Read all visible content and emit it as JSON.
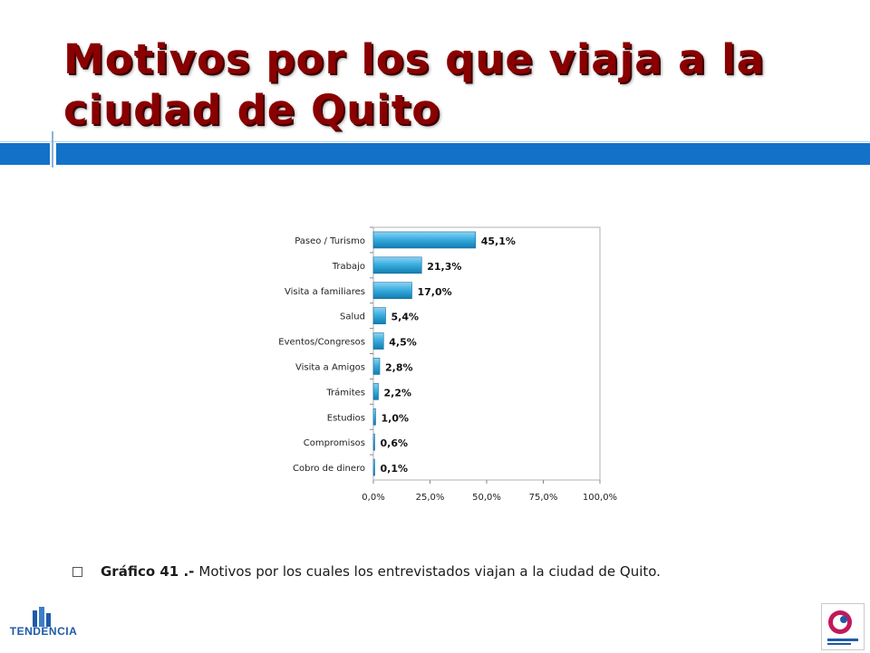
{
  "slide": {
    "title": "Motivos por los que viaja a la ciudad de Quito",
    "caption_bold": "Gráfico 41 .-",
    "caption_text": "Motivos por los cuales los entrevistados viajan a la ciudad de Quito.",
    "logo_left_text": "TENDENCIA",
    "accent_color": "#1372c7",
    "title_color": "#8a0000"
  },
  "chart_data": {
    "type": "bar",
    "orientation": "horizontal",
    "categories": [
      "Paseo / Turismo",
      "Trabajo",
      "Visita a familiares",
      "Salud",
      "Eventos/Congresos",
      "Visita a Amigos",
      "Trámites",
      "Estudios",
      "Compromisos",
      "Cobro de dinero"
    ],
    "values": [
      45.1,
      21.3,
      17.0,
      5.4,
      4.5,
      2.8,
      2.2,
      1.0,
      0.6,
      0.1
    ],
    "data_labels": [
      "45,1%",
      "21,3%",
      "17,0%",
      "5,4%",
      "4,5%",
      "2,8%",
      "2,2%",
      "1,0%",
      "0,6%",
      "0,1%"
    ],
    "xlim": [
      0,
      100
    ],
    "xticks": [
      0,
      25,
      50,
      75,
      100
    ],
    "xtick_labels": [
      "0,0%",
      "25,0%",
      "50,0%",
      "75,0%",
      "100,0%"
    ],
    "bar_color": "#2e9fd4",
    "grid": false,
    "legend": false
  }
}
